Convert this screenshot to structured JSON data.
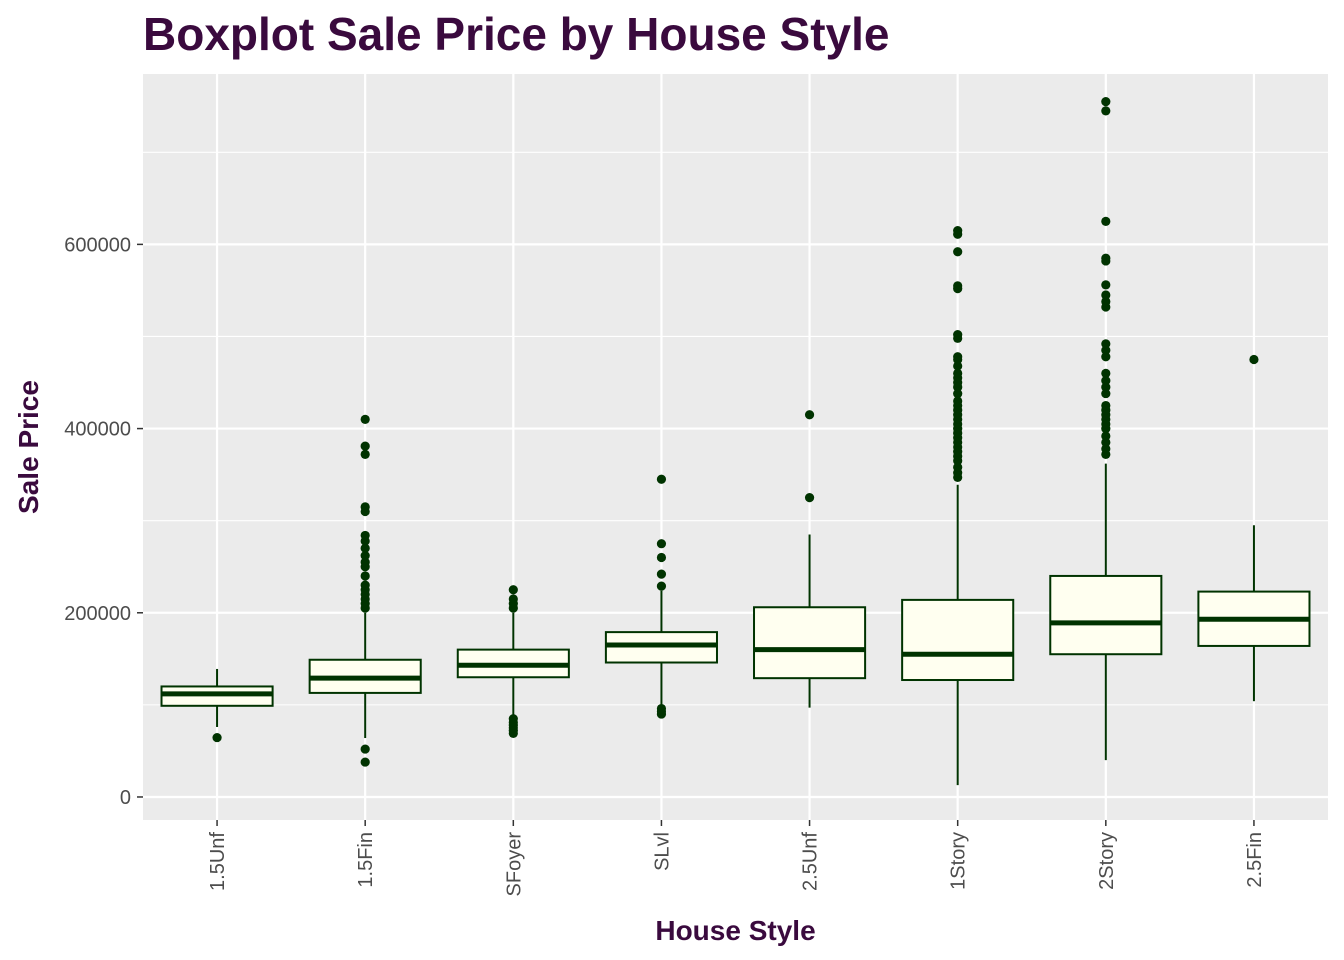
{
  "chart_data": {
    "type": "boxplot",
    "title": "Boxplot Sale Price by House Style",
    "xlabel": "House Style",
    "ylabel": "Sale Price",
    "ylim": [
      -25000,
      785000
    ],
    "yticks": [
      0,
      200000,
      400000,
      600000
    ],
    "ytick_labels": [
      "0",
      "200000",
      "400000",
      "600000"
    ],
    "grid": true,
    "legend": "none",
    "colors": {
      "panel_bg": "#ebebeb",
      "grid_major": "#ffffff",
      "box_fill": "#fffff0",
      "box_line": "#003300",
      "outlier": "#003300",
      "title": "#3a0a3e"
    },
    "categories": [
      "1.5Unf",
      "1.5Fin",
      "SFoyer",
      "SLvl",
      "2.5Unf",
      "1Story",
      "2Story",
      "2.5Fin"
    ],
    "boxes": [
      {
        "category": "1.5Unf",
        "whisker_low": 76000,
        "q1": 99000,
        "median": 112000,
        "q3": 120000,
        "whisker_high": 139000,
        "outliers": [
          64500
        ]
      },
      {
        "category": "1.5Fin",
        "whisker_low": 64000,
        "q1": 113000,
        "median": 129000,
        "q3": 149000,
        "whisker_high": 200000,
        "outliers": [
          37900,
          52000,
          205000,
          210000,
          215000,
          220000,
          225000,
          230000,
          240000,
          250000,
          255000,
          262000,
          270000,
          278000,
          284000,
          310000,
          315000,
          372000,
          381000,
          410000
        ]
      },
      {
        "category": "SFoyer",
        "whisker_low": 87000,
        "q1": 130000,
        "median": 143000,
        "q3": 160000,
        "whisker_high": 200000,
        "outliers": [
          69000,
          72000,
          75000,
          78000,
          81000,
          85000,
          205000,
          210000,
          215000,
          225000
        ]
      },
      {
        "category": "SLvl",
        "whisker_low": 97000,
        "q1": 146000,
        "median": 165000,
        "q3": 179000,
        "whisker_high": 224000,
        "outliers": [
          90000,
          93000,
          96000,
          229000,
          242000,
          260000,
          275000,
          345000
        ]
      },
      {
        "category": "2.5Unf",
        "whisker_low": 97000,
        "q1": 129000,
        "median": 160000,
        "q3": 206000,
        "whisker_high": 285000,
        "outliers": [
          325000,
          415000
        ]
      },
      {
        "category": "1Story",
        "whisker_low": 12800,
        "q1": 127000,
        "median": 155000,
        "q3": 214000,
        "whisker_high": 339000,
        "outliers": [
          347000,
          352000,
          358000,
          365000,
          370000,
          375000,
          380000,
          385000,
          390000,
          395000,
          400000,
          405000,
          410000,
          415000,
          420000,
          425000,
          430000,
          438000,
          445000,
          450000,
          455000,
          460000,
          468000,
          475000,
          478000,
          498000,
          502000,
          552000,
          555000,
          592000,
          611000,
          615000
        ]
      },
      {
        "category": "2Story",
        "whisker_low": 40000,
        "q1": 155000,
        "median": 189000,
        "q3": 240000,
        "whisker_high": 362000,
        "outliers": [
          372000,
          378000,
          385000,
          392000,
          400000,
          405000,
          410000,
          415000,
          420000,
          425000,
          438000,
          445000,
          452000,
          460000,
          478000,
          485000,
          492000,
          532000,
          538000,
          545000,
          556000,
          582000,
          585000,
          625000,
          745000,
          755000
        ]
      },
      {
        "category": "2.5Fin",
        "whisker_low": 104000,
        "q1": 164000,
        "median": 193000,
        "q3": 223000,
        "whisker_high": 295000,
        "outliers": [
          475000
        ]
      }
    ]
  }
}
